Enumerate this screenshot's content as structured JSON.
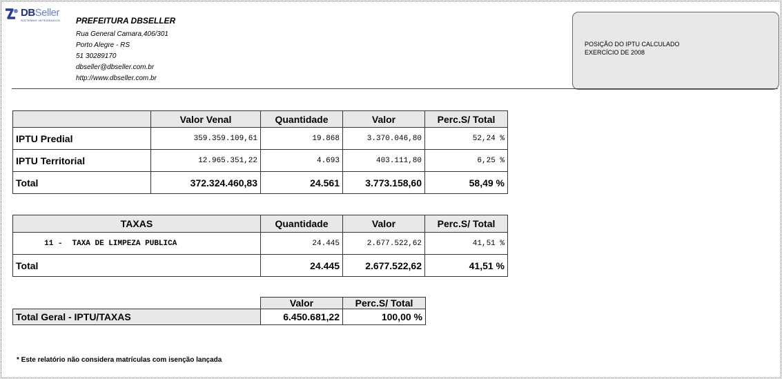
{
  "header": {
    "logo_text_bold": "DB",
    "logo_text_light": "Seller",
    "logo_subtext": "SISTEMAS INTEGRADOS",
    "org_name": "PREFEITURA DBSELLER",
    "address": "Rua General Camara,406/301",
    "city": "Porto Alegre - RS",
    "phone": "51 30289170",
    "email": "dbseller@dbseller.com.br",
    "website": "http://www.dbseller.com.br"
  },
  "info_box": {
    "line1": "POSIÇÃO DO IPTU CALCULADO",
    "line2": "EXERCÍCIO DE 2008"
  },
  "iptu_table": {
    "columns": [
      "",
      "Valor Venal",
      "Quantidade",
      "Valor",
      "Perc.S/ Total"
    ],
    "rows": [
      {
        "label": "IPTU Predial",
        "valor_venal": "359.359.109,61",
        "quantidade": "19.868",
        "valor": "3.370.046,80",
        "perc": "52,24 %"
      },
      {
        "label": "IPTU Territorial",
        "valor_venal": "12.965.351,22",
        "quantidade": "4.693",
        "valor": "403.111,80",
        "perc": "6,25 %"
      }
    ],
    "total": {
      "label": "Total",
      "valor_venal": "372.324.460,83",
      "quantidade": "24.561",
      "valor": "3.773.158,60",
      "perc": "58,49 %"
    }
  },
  "taxas_table": {
    "columns": [
      "TAXAS",
      "Quantidade",
      "Valor",
      "Perc.S/ Total"
    ],
    "rows": [
      {
        "codigo": "11 -",
        "descricao": "TAXA DE LIMPEZA PUBLICA",
        "quantidade": "24.445",
        "valor": "2.677.522,62",
        "perc": "41,51 %"
      }
    ],
    "total": {
      "label": "Total",
      "quantidade": "24.445",
      "valor": "2.677.522,62",
      "perc": "41,51 %"
    }
  },
  "geral_table": {
    "columns": [
      "Valor",
      "Perc.S/ Total"
    ],
    "label": "Total Geral - IPTU/TAXAS",
    "valor": "6.450.681,22",
    "perc": "100,00 %"
  },
  "footnote": "* Este relatório não considera matrículas com isenção lançada"
}
